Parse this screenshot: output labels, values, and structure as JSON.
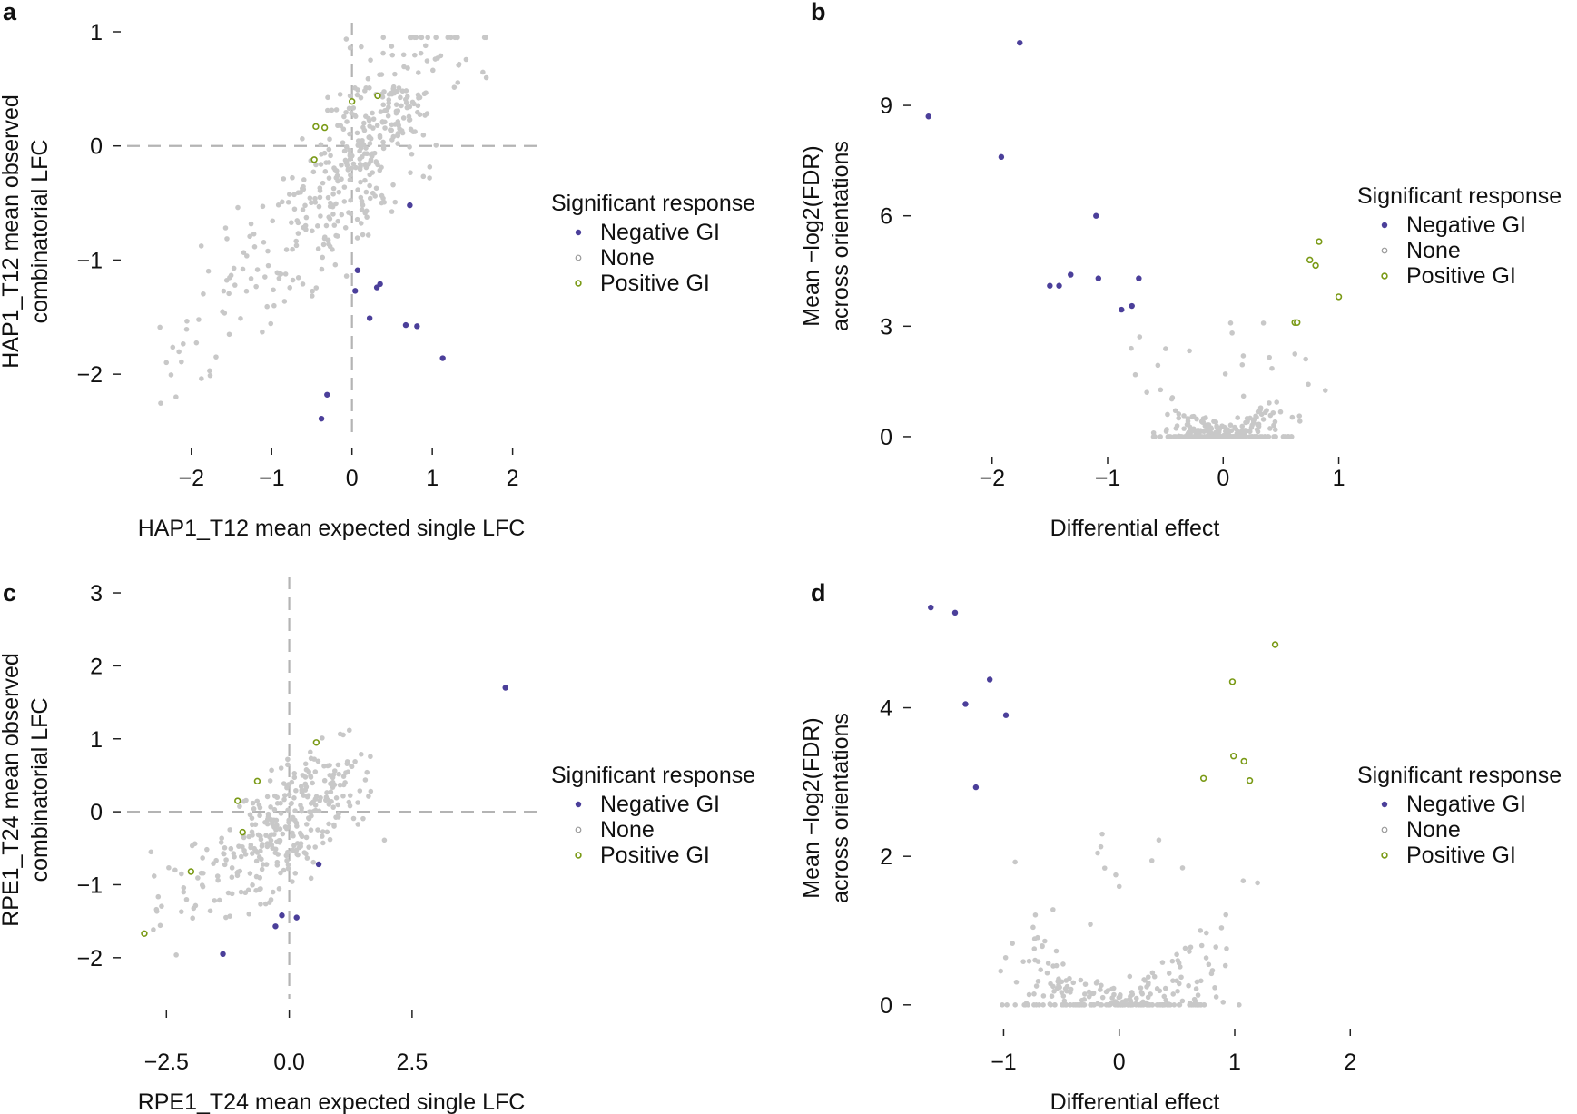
{
  "colors": {
    "negative": "#4b3f9a",
    "none": "#c8c8c8",
    "positive": "#7a9a16",
    "guide": "#b4b4b4"
  },
  "legend": {
    "title": "Significant response",
    "items": [
      {
        "label": "Negative GI",
        "class": "negative"
      },
      {
        "label": "None",
        "class": "none"
      },
      {
        "label": "Positive GI",
        "class": "positive"
      }
    ]
  },
  "chart_data": [
    {
      "panel": "a",
      "type": "scatter",
      "xlabel": "HAP1_T12 mean expected single LFC",
      "ylabel": [
        "HAP1_T12 mean observed",
        "combinatorial LFC"
      ],
      "xlim": [
        -2.8,
        2.4
      ],
      "ylim": [
        -2.5,
        1.0
      ],
      "xticks": [
        -2,
        -1,
        0,
        1,
        2
      ],
      "xtick_labels": [
        "−2",
        "−1",
        "0",
        "1",
        "2"
      ],
      "yticks": [
        1,
        0,
        -1,
        -2
      ],
      "ytick_labels": [
        "1",
        "0",
        "−1",
        "−2"
      ],
      "hlines": [
        0
      ],
      "vlines": [
        0
      ],
      "legend_placement": "right",
      "gray_cloud": {
        "count": 420,
        "description": "non-significant pairs"
      },
      "negative_points": [
        [
          0.72,
          -0.52
        ],
        [
          0.07,
          -1.09
        ],
        [
          0.04,
          -1.27
        ],
        [
          0.35,
          -1.21
        ],
        [
          0.31,
          -1.24
        ],
        [
          0.22,
          -1.51
        ],
        [
          0.67,
          -1.57
        ],
        [
          0.81,
          -1.58
        ],
        [
          1.13,
          -1.86
        ],
        [
          -0.31,
          -2.18
        ],
        [
          -0.38,
          -2.39
        ]
      ],
      "positive_points": [
        [
          0.32,
          0.44
        ],
        [
          0.0,
          0.39
        ],
        [
          -0.45,
          0.17
        ],
        [
          -0.34,
          0.16
        ],
        [
          -0.47,
          -0.12
        ]
      ]
    },
    {
      "panel": "b",
      "type": "scatter",
      "xlabel": "Differential effect",
      "ylabel": [
        "Mean −log2(FDR)",
        "across orientations"
      ],
      "xlim": [
        -2.65,
        1.2
      ],
      "ylim": [
        -0.1,
        11.0
      ],
      "xticks": [
        -2,
        -1,
        0,
        1
      ],
      "xtick_labels": [
        "−2",
        "−1",
        "0",
        "1"
      ],
      "yticks": [
        9,
        6,
        3,
        0
      ],
      "ytick_labels": [
        "9",
        "6",
        "3",
        "0"
      ],
      "legend_placement": "right",
      "gray_cloud": {
        "count": 260,
        "description": "non-significant pairs"
      },
      "negative_points": [
        [
          -1.76,
          10.7
        ],
        [
          -2.55,
          8.7
        ],
        [
          -1.92,
          7.6
        ],
        [
          -1.1,
          6.0
        ],
        [
          -1.32,
          4.4
        ],
        [
          -1.08,
          4.3
        ],
        [
          -0.73,
          4.3
        ],
        [
          -1.5,
          4.1
        ],
        [
          -1.42,
          4.1
        ],
        [
          -0.79,
          3.55
        ],
        [
          -0.88,
          3.45
        ]
      ],
      "positive_points": [
        [
          0.83,
          5.3
        ],
        [
          0.75,
          4.8
        ],
        [
          0.8,
          4.65
        ],
        [
          1.0,
          3.8
        ],
        [
          0.62,
          3.1
        ],
        [
          0.64,
          3.1
        ]
      ]
    },
    {
      "panel": "c",
      "type": "scatter",
      "xlabel": "RPE1_T24 mean expected single LFC",
      "ylabel": [
        "RPE1_T24 mean observed",
        "combinatorial LFC"
      ],
      "xlim": [
        -3.3,
        5.2
      ],
      "ylim": [
        -2.5,
        3.1
      ],
      "xticks": [
        -2.5,
        0.0,
        2.5
      ],
      "xtick_labels": [
        "−2.5",
        "0.0",
        "2.5"
      ],
      "yticks": [
        3,
        2,
        1,
        0,
        -1,
        -2
      ],
      "ytick_labels": [
        "3",
        "2",
        "1",
        "0",
        "−1",
        "−2"
      ],
      "hlines": [
        0
      ],
      "vlines": [
        0
      ],
      "legend_placement": "right",
      "gray_cloud": {
        "count": 330,
        "description": "non-significant pairs"
      },
      "negative_points": [
        [
          4.4,
          1.7
        ],
        [
          0.6,
          -0.72
        ],
        [
          -0.15,
          -1.42
        ],
        [
          0.15,
          -1.45
        ],
        [
          -0.28,
          -1.57
        ],
        [
          -1.35,
          -1.95
        ]
      ],
      "positive_points": [
        [
          0.55,
          0.95
        ],
        [
          -0.65,
          0.42
        ],
        [
          -1.05,
          0.15
        ],
        [
          -0.95,
          -0.28
        ],
        [
          -2.0,
          -0.82
        ],
        [
          -2.95,
          -1.67
        ]
      ]
    },
    {
      "panel": "d",
      "type": "scatter",
      "xlabel": "Differential effect",
      "ylabel": [
        "Mean −log2(FDR)",
        "across orientations"
      ],
      "xlim": [
        -1.75,
        2.1
      ],
      "ylim": [
        -0.1,
        5.4
      ],
      "xticks": [
        -1,
        0,
        1,
        2
      ],
      "xtick_labels": [
        "−1",
        "0",
        "1",
        "2"
      ],
      "yticks": [
        4,
        2,
        0
      ],
      "ytick_labels": [
        "4",
        "2",
        "0"
      ],
      "legend_placement": "right",
      "gray_cloud": {
        "count": 280,
        "description": "non-significant pairs"
      },
      "negative_points": [
        [
          -1.63,
          5.35
        ],
        [
          -1.42,
          5.28
        ],
        [
          -1.12,
          4.38
        ],
        [
          -1.33,
          4.05
        ],
        [
          -0.98,
          3.9
        ],
        [
          -1.24,
          2.93
        ]
      ],
      "positive_points": [
        [
          1.35,
          4.85
        ],
        [
          0.98,
          4.35
        ],
        [
          0.99,
          3.35
        ],
        [
          1.08,
          3.28
        ],
        [
          0.73,
          3.05
        ],
        [
          1.13,
          3.02
        ]
      ]
    }
  ]
}
